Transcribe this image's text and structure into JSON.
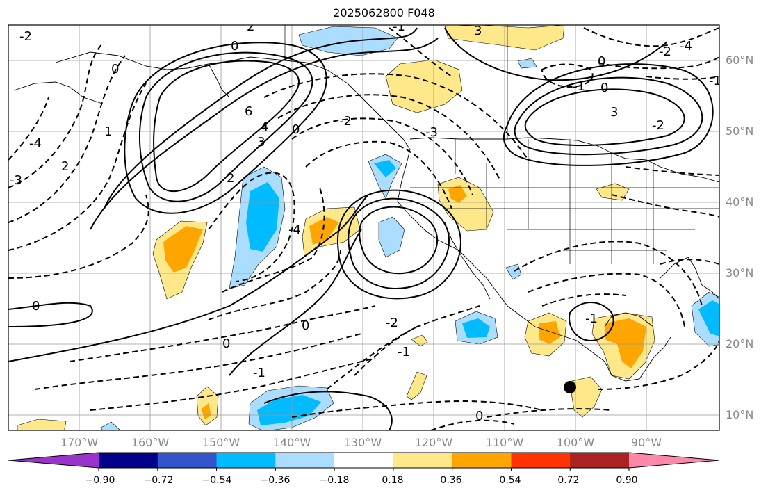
{
  "title": "2025062800 F048",
  "map": {
    "lat_labels": [
      "60°N",
      "50°N",
      "40°N",
      "30°N",
      "20°N",
      "10°N"
    ],
    "lon_labels": [
      "170°W",
      "160°W",
      "150°W",
      "140°W",
      "130°W",
      "120°W",
      "110°W",
      "100°W",
      "90°W"
    ],
    "contour_labels": [
      "0",
      "1",
      "2",
      "-3",
      "-4",
      "6",
      "0",
      "-2",
      "4",
      "3",
      "2",
      "-4",
      "0",
      "0",
      "0",
      "-2",
      "-1",
      "-2",
      "-3",
      "0",
      "3",
      "-4",
      "-2",
      "3",
      "-2",
      "0",
      "-1",
      "-1",
      "-1",
      "0",
      "-1",
      "2",
      "0",
      "-1"
    ]
  },
  "colorbar": {
    "colors": [
      "#9933cc",
      "#000088",
      "#3355cc",
      "#00bbff",
      "#aaddff",
      "#ffffff",
      "#ffe88a",
      "#ffa500",
      "#ff3300",
      "#aa2222",
      "#ff88aa"
    ],
    "tick_labels": [
      "−0.90",
      "−0.72",
      "−0.54",
      "−0.36",
      "−0.18",
      "0.18",
      "0.36",
      "0.54",
      "0.72",
      "0.90"
    ]
  }
}
